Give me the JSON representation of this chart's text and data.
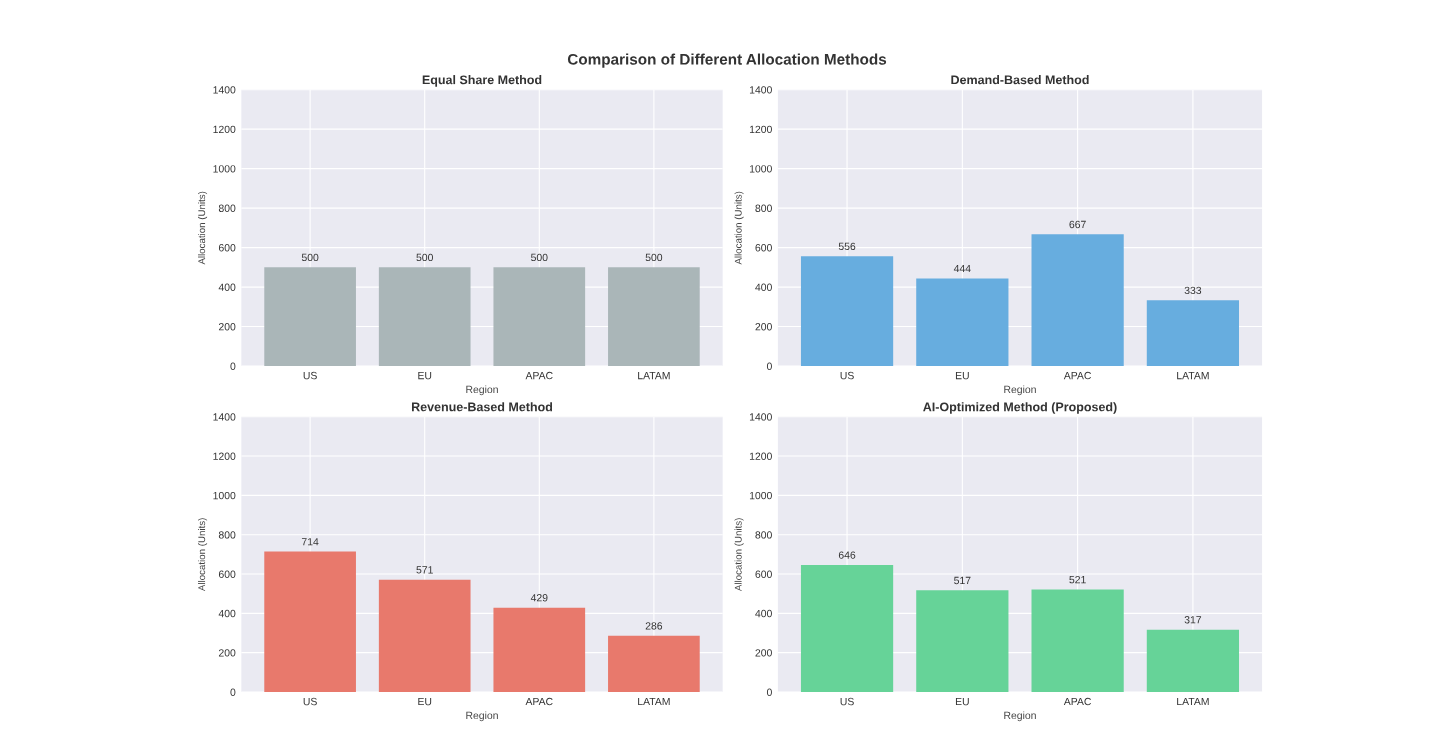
{
  "chart_data": [
    {
      "type": "bar",
      "title": "Equal Share Method",
      "xlabel": "Region",
      "ylabel": "Allocation (Units)",
      "annotations": [
        "Comparison of Different Allocation Methods"
      ],
      "categories": [
        "US",
        "EU",
        "APAC",
        "LATAM"
      ],
      "values": [
        500,
        500,
        500,
        500
      ],
      "color": "#aab6b8",
      "ylim": [
        0,
        1400
      ],
      "yticks": [
        0,
        200,
        400,
        600,
        800,
        1000,
        1200,
        1400
      ],
      "grid": true,
      "data_labels": true
    },
    {
      "type": "bar",
      "title": "Demand-Based Method",
      "xlabel": "Region",
      "ylabel": "Allocation (Units)",
      "categories": [
        "US",
        "EU",
        "APAC",
        "LATAM"
      ],
      "values": [
        556,
        444,
        667,
        333
      ],
      "color": "#67addf",
      "ylim": [
        0,
        1400
      ],
      "yticks": [
        0,
        200,
        400,
        600,
        800,
        1000,
        1200,
        1400
      ],
      "grid": true,
      "data_labels": true
    },
    {
      "type": "bar",
      "title": "Revenue-Based Method",
      "xlabel": "Region",
      "ylabel": "Allocation (Units)",
      "categories": [
        "US",
        "EU",
        "APAC",
        "LATAM"
      ],
      "values": [
        714,
        571,
        429,
        286
      ],
      "color": "#e8796c",
      "ylim": [
        0,
        1400
      ],
      "yticks": [
        0,
        200,
        400,
        600,
        800,
        1000,
        1200,
        1400
      ],
      "grid": true,
      "data_labels": true
    },
    {
      "type": "bar",
      "title": "AI-Optimized Method (Proposed)",
      "xlabel": "Region",
      "ylabel": "Allocation (Units)",
      "categories": [
        "US",
        "EU",
        "APAC",
        "LATAM"
      ],
      "values": [
        646,
        517,
        521,
        317
      ],
      "color": "#66d398",
      "ylim": [
        0,
        1400
      ],
      "yticks": [
        0,
        200,
        400,
        600,
        800,
        1000,
        1200,
        1400
      ],
      "grid": true,
      "data_labels": true
    }
  ]
}
